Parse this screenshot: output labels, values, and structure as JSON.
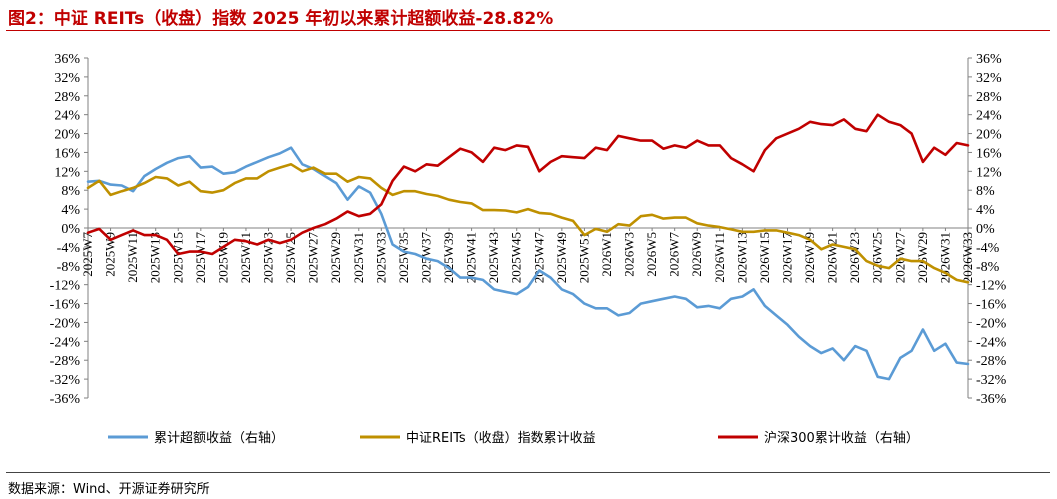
{
  "title": "图2：中证 REITs（收盘）指数 2025 年初以来累计超额收益-28.82%",
  "source": "数据来源：Wind、开源证券研究所",
  "colors": {
    "title": "#c00000",
    "series_blue": "#5b9bd5",
    "series_gold": "#bf9000",
    "series_red": "#c00000"
  },
  "chart_data": {
    "type": "line",
    "x": [
      "2025W7",
      "2025W8",
      "2025W9",
      "2025W10",
      "2025W11",
      "2025W12",
      "2025W13",
      "2025W14",
      "2025W15",
      "2025W16",
      "2025W17",
      "2025W18",
      "2025W19",
      "2025W20",
      "2025W21",
      "2025W22",
      "2025W23",
      "2025W24",
      "2025W25",
      "2025W26",
      "2025W27",
      "2025W28",
      "2025W29",
      "2025W30",
      "2025W31",
      "2025W32",
      "2025W33",
      "2025W34",
      "2025W35",
      "2025W36",
      "2025W37",
      "2025W38",
      "2025W39",
      "2025W40",
      "2025W41",
      "2025W42",
      "2025W43",
      "2025W44",
      "2025W45",
      "2025W46",
      "2025W47",
      "2025W48",
      "2025W49",
      "2025W50",
      "2025W51",
      "2025W52",
      "2026W1",
      "2026W2",
      "2026W3",
      "2026W4",
      "2026W5",
      "2026W6",
      "2026W7",
      "2026W8",
      "2026W9",
      "2026W10",
      "2026W11",
      "2026W12",
      "2026W13",
      "2026W14",
      "2026W15",
      "2026W16",
      "2026W17",
      "2026W18",
      "2026W19",
      "2026W20",
      "2026W21",
      "2026W22",
      "2026W23",
      "2026W24",
      "2026W25",
      "2026W26",
      "2026W27",
      "2026W28",
      "2026W29",
      "2026W30",
      "2026W31",
      "2026W32",
      "2026W33"
    ],
    "x_tick_labels": [
      "2025W7",
      "2025W9",
      "2025W11",
      "2025W13",
      "2025W15",
      "2025W17",
      "2025W19",
      "2025W21",
      "2025W23",
      "2025W25",
      "2025W27",
      "2025W29",
      "2025W31",
      "2025W33",
      "2025W35",
      "2025W37",
      "2025W39",
      "2025W41",
      "2025W43",
      "2025W45",
      "2025W47",
      "2025W49",
      "2025W51",
      "2026W1",
      "2026W3",
      "2026W5",
      "2026W7",
      "2026W9",
      "2026W11",
      "2026W13",
      "2026W15",
      "2026W17",
      "2026W19",
      "2026W21",
      "2026W23",
      "2026W25",
      "2026W27",
      "2026W29",
      "2026W31",
      "2026W33"
    ],
    "y_left": {
      "min": -36,
      "max": 36,
      "step": 4,
      "ticks": [
        "36%",
        "32%",
        "28%",
        "24%",
        "20%",
        "16%",
        "12%",
        "8%",
        "4%",
        "0%",
        "-4%",
        "-8%",
        "-12%",
        "-16%",
        "-20%",
        "-24%",
        "-28%",
        "-32%",
        "-36%"
      ]
    },
    "y_right": {
      "min": -36,
      "max": 36,
      "step": 4,
      "ticks": [
        "36%",
        "32%",
        "28%",
        "24%",
        "20%",
        "16%",
        "12%",
        "8%",
        "4%",
        "0%",
        "-4%",
        "-8%",
        "-12%",
        "-16%",
        "-20%",
        "-24%",
        "-28%",
        "-32%",
        "-36%"
      ]
    },
    "series": [
      {
        "name": "累计超额收益（右轴）",
        "axis": "right",
        "color": "#5b9bd5",
        "values": [
          9.8,
          10.0,
          9.2,
          9.0,
          7.8,
          11.0,
          12.5,
          13.8,
          14.8,
          15.2,
          12.8,
          13.0,
          11.5,
          11.8,
          13.0,
          14.0,
          15.0,
          15.8,
          17.0,
          13.5,
          12.5,
          11.0,
          9.5,
          6.0,
          8.8,
          7.5,
          3.0,
          -3.5,
          -5.0,
          -5.5,
          -6.5,
          -7.0,
          -8.5,
          -10.5,
          -10.5,
          -11.0,
          -13.0,
          -13.5,
          -14.0,
          -12.5,
          -9.0,
          -10.5,
          -13.0,
          -14.0,
          -16.0,
          -17.0,
          -17.0,
          -18.5,
          -18.0,
          -16.0,
          -15.5,
          -15.0,
          -14.5,
          -15.0,
          -16.8,
          -16.5,
          -17.0,
          -15.0,
          -14.5,
          -13.0,
          -16.5,
          -18.5,
          -20.5,
          -23.0,
          -25.0,
          -26.5,
          -25.5,
          -28.0,
          -25.0,
          -26.0,
          -31.5,
          -32.0,
          -27.5,
          -26.0,
          -21.5,
          -26.0,
          -24.5,
          -28.5,
          -28.8
        ]
      },
      {
        "name": "中证REITs（收盘）指数累计收益",
        "axis": "left",
        "color": "#bf9000",
        "values": [
          8.5,
          10.0,
          7.0,
          7.8,
          8.5,
          9.5,
          10.8,
          10.5,
          9.0,
          9.8,
          7.8,
          7.5,
          8.0,
          9.5,
          10.5,
          10.5,
          12.0,
          12.8,
          13.5,
          12.0,
          12.8,
          11.5,
          11.5,
          9.8,
          10.8,
          10.5,
          8.5,
          7.0,
          7.8,
          7.8,
          7.2,
          6.8,
          6.0,
          5.5,
          5.2,
          3.8,
          3.8,
          3.7,
          3.3,
          4.0,
          3.2,
          3.0,
          2.2,
          1.5,
          -1.5,
          -0.2,
          -0.8,
          0.8,
          0.5,
          2.5,
          2.8,
          2.0,
          2.2,
          2.2,
          1.0,
          0.5,
          0.2,
          -0.3,
          -0.8,
          -0.8,
          -0.5,
          -0.5,
          -1.0,
          -1.5,
          -2.5,
          -4.5,
          -3.5,
          -4.0,
          -4.5,
          -7.0,
          -8.0,
          -8.5,
          -6.5,
          -7.0,
          -7.0,
          -8.5,
          -9.5,
          -11.0,
          -11.5
        ]
      },
      {
        "name": "沪深300累计收益（右轴）",
        "axis": "right",
        "color": "#c00000",
        "values": [
          -1.0,
          -0.2,
          -2.5,
          -1.5,
          -0.5,
          -1.5,
          -1.5,
          -2.5,
          -5.5,
          -5.0,
          -5.0,
          -5.5,
          -4.0,
          -2.5,
          -2.8,
          -3.5,
          -2.5,
          -3.2,
          -2.5,
          -1.0,
          0.0,
          0.8,
          2.0,
          3.5,
          2.5,
          3.0,
          5.0,
          10.0,
          13.0,
          12.0,
          13.5,
          13.2,
          15.0,
          16.8,
          16.0,
          14.0,
          17.0,
          16.5,
          17.5,
          17.2,
          12.0,
          14.0,
          15.2,
          15.0,
          14.8,
          17.0,
          16.5,
          19.5,
          19.0,
          18.5,
          18.5,
          16.8,
          17.5,
          17.0,
          18.5,
          17.5,
          17.5,
          14.8,
          13.5,
          12.0,
          16.5,
          19.0,
          20.0,
          21.0,
          22.5,
          22.0,
          21.8,
          23.0,
          21.0,
          20.5,
          24.0,
          22.5,
          21.8,
          20.0,
          14.0,
          17.0,
          15.5,
          18.0,
          17.5
        ]
      }
    ],
    "legend_position": "bottom",
    "grid": false
  }
}
